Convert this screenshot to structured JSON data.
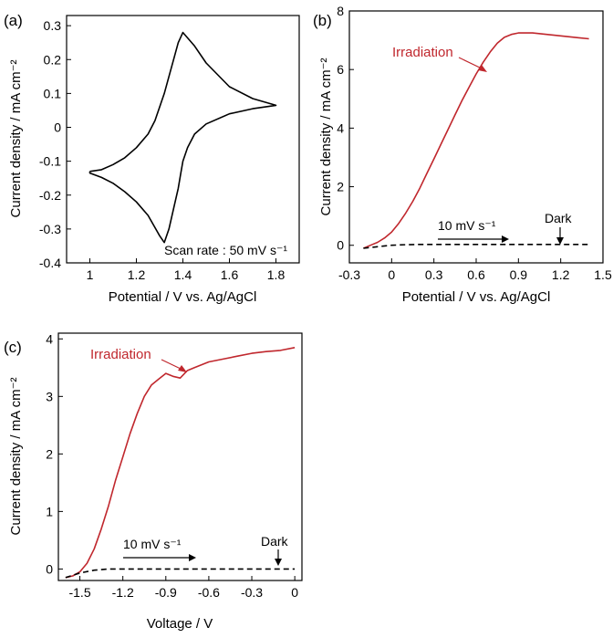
{
  "chart_data": [
    {
      "panel": "(a)",
      "type": "line",
      "xlabel": "Potential / V vs. Ag/AgCl",
      "ylabel": "Current density / mA cm⁻²",
      "xlim": [
        0.9,
        1.9
      ],
      "ylim": [
        -0.4,
        0.33
      ],
      "xticks": [
        1.0,
        1.2,
        1.4,
        1.6,
        1.8
      ],
      "yticks": [
        -0.4,
        -0.3,
        -0.2,
        -0.1,
        0,
        0.1,
        0.2,
        0.3
      ],
      "annotations": [
        "Scan rate : 50 mV s⁻¹"
      ],
      "series": [
        {
          "color": "#000000",
          "style": "solid",
          "x": [
            1.0,
            1.05,
            1.1,
            1.15,
            1.2,
            1.25,
            1.28,
            1.3,
            1.32,
            1.34,
            1.36,
            1.38,
            1.4,
            1.45,
            1.5,
            1.6,
            1.7,
            1.8,
            1.7,
            1.6,
            1.5,
            1.45,
            1.42,
            1.4,
            1.39,
            1.38,
            1.36,
            1.34,
            1.32,
            1.3,
            1.25,
            1.2,
            1.15,
            1.1,
            1.05,
            1.0,
            1.0
          ],
          "y": [
            -0.13,
            -0.125,
            -0.11,
            -0.09,
            -0.06,
            -0.02,
            0.02,
            0.06,
            0.1,
            0.15,
            0.2,
            0.25,
            0.28,
            0.24,
            0.19,
            0.12,
            0.085,
            0.065,
            0.055,
            0.04,
            0.01,
            -0.02,
            -0.06,
            -0.1,
            -0.14,
            -0.18,
            -0.24,
            -0.3,
            -0.34,
            -0.32,
            -0.26,
            -0.22,
            -0.19,
            -0.165,
            -0.148,
            -0.135,
            -0.13
          ]
        }
      ]
    },
    {
      "panel": "(b)",
      "type": "line",
      "xlabel": "Potential / V vs. Ag/AgCl",
      "ylabel": "Current density / mA cm⁻²",
      "xlim": [
        -0.3,
        1.5
      ],
      "ylim": [
        -0.6,
        8
      ],
      "xticks": [
        -0.3,
        0.0,
        0.3,
        0.6,
        0.9,
        1.2,
        1.5
      ],
      "xticklabels": [
        "-0.3",
        "0",
        "0.3",
        "0.6",
        "0.9",
        "1.2",
        "1.5"
      ],
      "yticks": [
        0,
        2,
        4,
        6,
        8
      ],
      "annotations": [
        "Irradiation",
        "10 mV s⁻¹",
        "Dark"
      ],
      "series": [
        {
          "name": "Irradiation",
          "color": "#c0272d",
          "style": "solid",
          "x": [
            -0.2,
            -0.15,
            -0.1,
            -0.05,
            0.0,
            0.05,
            0.1,
            0.15,
            0.2,
            0.25,
            0.3,
            0.35,
            0.4,
            0.45,
            0.5,
            0.55,
            0.6,
            0.65,
            0.7,
            0.75,
            0.8,
            0.85,
            0.9,
            1.0,
            1.1,
            1.2,
            1.3,
            1.4
          ],
          "y": [
            -0.1,
            0.0,
            0.1,
            0.25,
            0.45,
            0.75,
            1.1,
            1.5,
            1.95,
            2.45,
            2.95,
            3.45,
            3.95,
            4.45,
            4.95,
            5.4,
            5.85,
            6.25,
            6.6,
            6.9,
            7.1,
            7.2,
            7.25,
            7.25,
            7.2,
            7.15,
            7.1,
            7.05
          ]
        },
        {
          "name": "Dark",
          "color": "#000000",
          "style": "dashed",
          "x": [
            -0.2,
            -0.1,
            0.0,
            0.1,
            0.2,
            0.4,
            0.6,
            0.8,
            1.0,
            1.2,
            1.4
          ],
          "y": [
            -0.1,
            -0.05,
            0.0,
            0.02,
            0.03,
            0.03,
            0.03,
            0.03,
            0.03,
            0.03,
            0.03
          ]
        }
      ]
    },
    {
      "panel": "(c)",
      "type": "line",
      "xlabel": "Voltage / V",
      "ylabel": "Current density / mA cm⁻²",
      "xlim": [
        -1.65,
        0.05
      ],
      "ylim": [
        -0.2,
        4.1
      ],
      "xticks": [
        -1.5,
        -1.2,
        -0.9,
        -0.6,
        -0.3,
        0.0
      ],
      "xticklabels": [
        "-1.5",
        "-1.2",
        "-0.9",
        "-0.6",
        "-0.3",
        "0"
      ],
      "yticks": [
        0,
        1,
        2,
        3,
        4
      ],
      "annotations": [
        "Irradiation",
        "10 mV s⁻¹",
        "Dark"
      ],
      "series": [
        {
          "name": "Irradiation",
          "color": "#c0272d",
          "style": "solid",
          "x": [
            -1.6,
            -1.55,
            -1.5,
            -1.45,
            -1.4,
            -1.35,
            -1.3,
            -1.25,
            -1.2,
            -1.15,
            -1.1,
            -1.05,
            -1.0,
            -0.95,
            -0.9,
            -0.85,
            -0.8,
            -0.75,
            -0.7,
            -0.6,
            -0.5,
            -0.4,
            -0.3,
            -0.2,
            -0.1,
            0.0
          ],
          "y": [
            -0.15,
            -0.12,
            -0.05,
            0.1,
            0.35,
            0.7,
            1.1,
            1.55,
            1.95,
            2.35,
            2.7,
            3.0,
            3.2,
            3.3,
            3.4,
            3.35,
            3.32,
            3.45,
            3.5,
            3.6,
            3.65,
            3.7,
            3.75,
            3.78,
            3.8,
            3.85
          ]
        },
        {
          "name": "Dark",
          "color": "#000000",
          "style": "dashed",
          "x": [
            -1.6,
            -1.5,
            -1.4,
            -1.3,
            -1.2,
            -1.0,
            -0.8,
            -0.6,
            -0.4,
            -0.2,
            0.0
          ],
          "y": [
            -0.15,
            -0.07,
            -0.02,
            0.0,
            0.0,
            0.0,
            0.0,
            0.0,
            0.0,
            0.0,
            0.0
          ]
        }
      ]
    }
  ]
}
